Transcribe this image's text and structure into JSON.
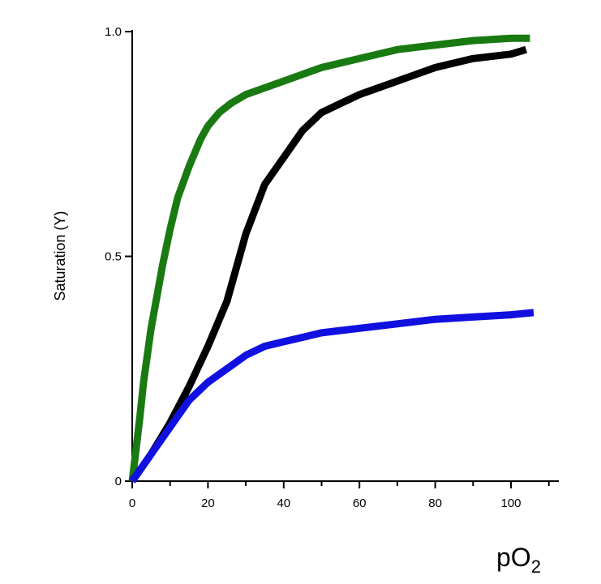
{
  "chart_data": {
    "type": "line",
    "ylabel": "Saturation (Y)",
    "xlabel": {
      "main": "pO",
      "sub": "2"
    },
    "xlim": [
      0,
      112
    ],
    "ylim": [
      0,
      1.0
    ],
    "x_ticks": [
      0,
      20,
      40,
      60,
      80,
      100
    ],
    "x_tick_labels": [
      "0",
      "20",
      "40",
      "60",
      "80",
      "100"
    ],
    "y_ticks": [
      0,
      0.5,
      1.0
    ],
    "y_tick_labels": [
      "0",
      "0.5",
      "1.0"
    ],
    "grid": false,
    "series": [
      {
        "color": "#1a7a12",
        "x": [
          0,
          1,
          2,
          3,
          5,
          8,
          10,
          12,
          15,
          18,
          20,
          23,
          26,
          30,
          40,
          50,
          60,
          70,
          80,
          90,
          100,
          105
        ],
        "y": [
          0,
          0.07,
          0.14,
          0.22,
          0.34,
          0.48,
          0.56,
          0.63,
          0.7,
          0.76,
          0.79,
          0.82,
          0.84,
          0.86,
          0.89,
          0.92,
          0.94,
          0.96,
          0.97,
          0.98,
          0.985,
          0.985
        ]
      },
      {
        "color": "#000000",
        "x": [
          0,
          5,
          10,
          15,
          20,
          25,
          30,
          35,
          40,
          45,
          50,
          60,
          70,
          80,
          90,
          100,
          104
        ],
        "y": [
          0,
          0.06,
          0.13,
          0.21,
          0.3,
          0.4,
          0.55,
          0.66,
          0.72,
          0.78,
          0.82,
          0.86,
          0.89,
          0.92,
          0.94,
          0.95,
          0.96
        ]
      },
      {
        "color": "#1010e0",
        "x": [
          0,
          5,
          10,
          15,
          20,
          25,
          30,
          35,
          40,
          50,
          60,
          70,
          80,
          90,
          100,
          106
        ],
        "y": [
          0,
          0.06,
          0.12,
          0.18,
          0.22,
          0.25,
          0.28,
          0.3,
          0.31,
          0.33,
          0.34,
          0.35,
          0.36,
          0.365,
          0.37,
          0.375
        ]
      }
    ]
  }
}
